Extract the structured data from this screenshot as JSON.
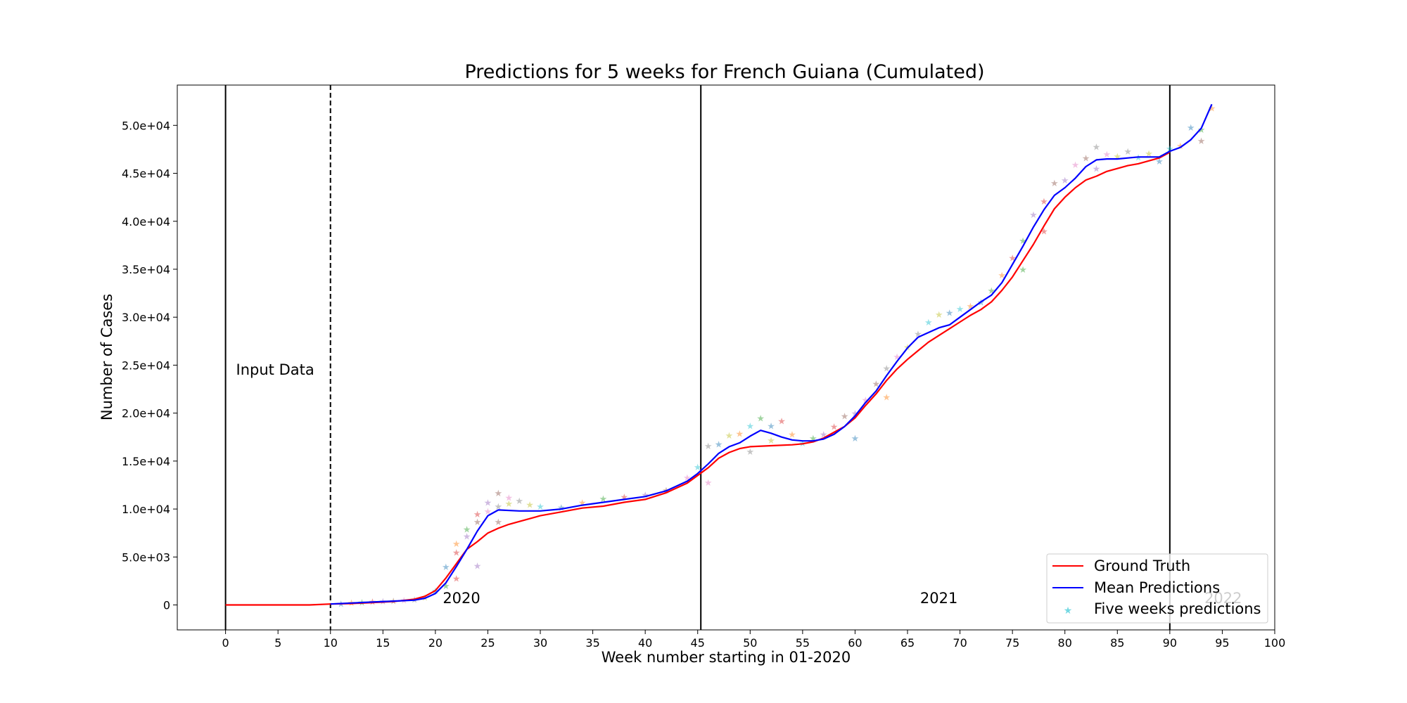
{
  "chart_data": {
    "type": "line",
    "title": "Predictions for 5 weeks for French Guiana (Cumulated)",
    "xlabel": "Week number starting in 01-2020",
    "ylabel": "Number of Cases",
    "xlim": [
      -4.6,
      100.0
    ],
    "ylim": [
      -2600,
      54200
    ],
    "x_ticks": [
      0,
      5,
      10,
      15,
      20,
      25,
      30,
      35,
      40,
      45,
      50,
      55,
      60,
      65,
      70,
      75,
      80,
      85,
      90,
      95,
      100
    ],
    "y_ticks": [
      0,
      5000,
      10000,
      15000,
      20000,
      25000,
      30000,
      35000,
      40000,
      45000,
      50000
    ],
    "y_tick_labels": [
      "0",
      "5.0e+03",
      "1.0e+04",
      "1.5e+04",
      "2.0e+04",
      "2.5e+04",
      "3.0e+04",
      "3.5e+04",
      "4.0e+04",
      "4.5e+04",
      "5.0e+04"
    ],
    "grid": false,
    "legend_position": "lower-right",
    "vertical_lines": [
      {
        "x": 0,
        "style": "solid"
      },
      {
        "x": 10,
        "style": "dashed"
      },
      {
        "x": 45.3,
        "style": "solid"
      },
      {
        "x": 90,
        "style": "solid"
      }
    ],
    "annotations": [
      {
        "text": "Input Data",
        "x": 1,
        "y": 24000,
        "color": "#000000"
      },
      {
        "text": "2020",
        "x": 20.7,
        "y": 200,
        "color": "#000000"
      },
      {
        "text": "2021",
        "x": 66.2,
        "y": 200,
        "color": "#000000"
      },
      {
        "text": "2022",
        "x": 93.3,
        "y": 200,
        "color": "#b0b0b0"
      }
    ],
    "series": [
      {
        "name": "Ground Truth",
        "color": "#ff0000",
        "x": [
          0,
          2,
          4,
          6,
          8,
          10,
          12,
          14,
          16,
          18,
          19,
          20,
          21,
          22,
          23,
          24,
          25,
          26,
          27,
          28,
          30,
          32,
          34,
          36,
          38,
          40,
          42,
          44,
          45,
          46,
          47,
          48,
          49,
          50,
          52,
          54,
          55,
          56,
          57,
          58,
          59,
          60,
          61,
          62,
          63,
          64,
          65,
          66,
          67,
          68,
          69,
          70,
          71,
          72,
          73,
          74,
          75,
          76,
          77,
          78,
          79,
          80,
          81,
          82,
          83,
          84,
          85,
          86,
          87,
          88,
          89,
          90
        ],
        "y": [
          0,
          0,
          0,
          0,
          0,
          100,
          150,
          250,
          350,
          600,
          900,
          1500,
          2800,
          4300,
          5800,
          6600,
          7500,
          8000,
          8400,
          8700,
          9300,
          9700,
          10100,
          10300,
          10700,
          11000,
          11700,
          12700,
          13500,
          14300,
          15300,
          15900,
          16300,
          16500,
          16600,
          16700,
          16800,
          17000,
          17400,
          18000,
          18600,
          19500,
          20800,
          22000,
          23400,
          24600,
          25600,
          26500,
          27400,
          28100,
          28800,
          29500,
          30200,
          30800,
          31600,
          32800,
          34200,
          35900,
          37600,
          39500,
          41300,
          42500,
          43500,
          44300,
          44700,
          45200,
          45500,
          45800,
          46000,
          46300,
          46600,
          47200
        ]
      },
      {
        "name": "Mean Predictions",
        "color": "#0000ff",
        "x": [
          10,
          12,
          14,
          16,
          18,
          19,
          20,
          21,
          22,
          23,
          24,
          25,
          26,
          28,
          30,
          32,
          34,
          36,
          38,
          40,
          42,
          44,
          45,
          46,
          47,
          48,
          49,
          50,
          51,
          52,
          53,
          54,
          55,
          56,
          57,
          58,
          59,
          60,
          61,
          62,
          63,
          64,
          65,
          66,
          67,
          68,
          69,
          70,
          71,
          72,
          73,
          74,
          75,
          76,
          77,
          78,
          79,
          80,
          81,
          82,
          83,
          84,
          85,
          86,
          87,
          88,
          89,
          90,
          91,
          92,
          93,
          94
        ],
        "y": [
          100,
          200,
          300,
          400,
          500,
          700,
          1200,
          2300,
          4000,
          5800,
          7700,
          9300,
          9900,
          9800,
          9800,
          10000,
          10400,
          10700,
          11000,
          11300,
          11900,
          12900,
          13700,
          14700,
          15800,
          16500,
          16900,
          17600,
          18200,
          17900,
          17500,
          17200,
          17100,
          17100,
          17300,
          17800,
          18600,
          19700,
          21100,
          22300,
          23900,
          25400,
          26800,
          27900,
          28400,
          28900,
          29200,
          30000,
          30800,
          31600,
          32300,
          33600,
          35500,
          37400,
          39400,
          41200,
          42700,
          43500,
          44500,
          45700,
          46400,
          46500,
          46500,
          46600,
          46700,
          46700,
          46700,
          47300,
          47700,
          48500,
          49700,
          52200
        ]
      },
      {
        "name": "Five weeks predictions",
        "marker": "star",
        "x": [
          11,
          12,
          13,
          14,
          15,
          16,
          17,
          18,
          19,
          20,
          21,
          22,
          23,
          24,
          25,
          26,
          27,
          28,
          29,
          30,
          32,
          34,
          36,
          38,
          40,
          42,
          44,
          46,
          48,
          50,
          52,
          54,
          56,
          58,
          60,
          62,
          64,
          66,
          68,
          70,
          72,
          74,
          76,
          78,
          80,
          82,
          84,
          86,
          88,
          90,
          92,
          94,
          21,
          22,
          23,
          24,
          25,
          26,
          27,
          45,
          47,
          49,
          51,
          53,
          57,
          59,
          61,
          63,
          65,
          67,
          69,
          71,
          73,
          75,
          77,
          79,
          81,
          83,
          85,
          87,
          89,
          91,
          93,
          22,
          24,
          26,
          46,
          50,
          52,
          55,
          60,
          63,
          76,
          78,
          83,
          93
        ],
        "y": [
          150,
          250,
          300,
          350,
          400,
          450,
          500,
          600,
          800,
          1500,
          4000,
          6400,
          7900,
          9500,
          10700,
          11700,
          11200,
          10900,
          10500,
          10300,
          10200,
          10700,
          11100,
          11300,
          11500,
          12000,
          13300,
          16600,
          17700,
          18700,
          18700,
          17800,
          17400,
          18600,
          20000,
          23100,
          25900,
          28300,
          30300,
          30900,
          31600,
          34400,
          38000,
          42100,
          44300,
          46600,
          47000,
          47300,
          47100,
          47600,
          49800,
          51800,
          2000,
          5500,
          7200,
          8700,
          9800,
          10300,
          10600,
          14400,
          16800,
          17900,
          19500,
          19200,
          17800,
          19700,
          21400,
          24700,
          26900,
          29500,
          30500,
          31200,
          32800,
          36200,
          40700,
          44000,
          45900,
          47800,
          46800,
          46700,
          46300,
          47900,
          49600,
          2800,
          4100,
          8700,
          12800,
          16000,
          17200,
          16900,
          17400,
          21700,
          35000,
          39000,
          45500,
          48400
        ],
        "colors": [
          "#1f77b4",
          "#ff7f0e",
          "#2ca02c",
          "#d62728",
          "#9467bd",
          "#8c564b",
          "#e377c2",
          "#7f7f7f",
          "#bcbd22",
          "#17becf"
        ]
      }
    ]
  }
}
